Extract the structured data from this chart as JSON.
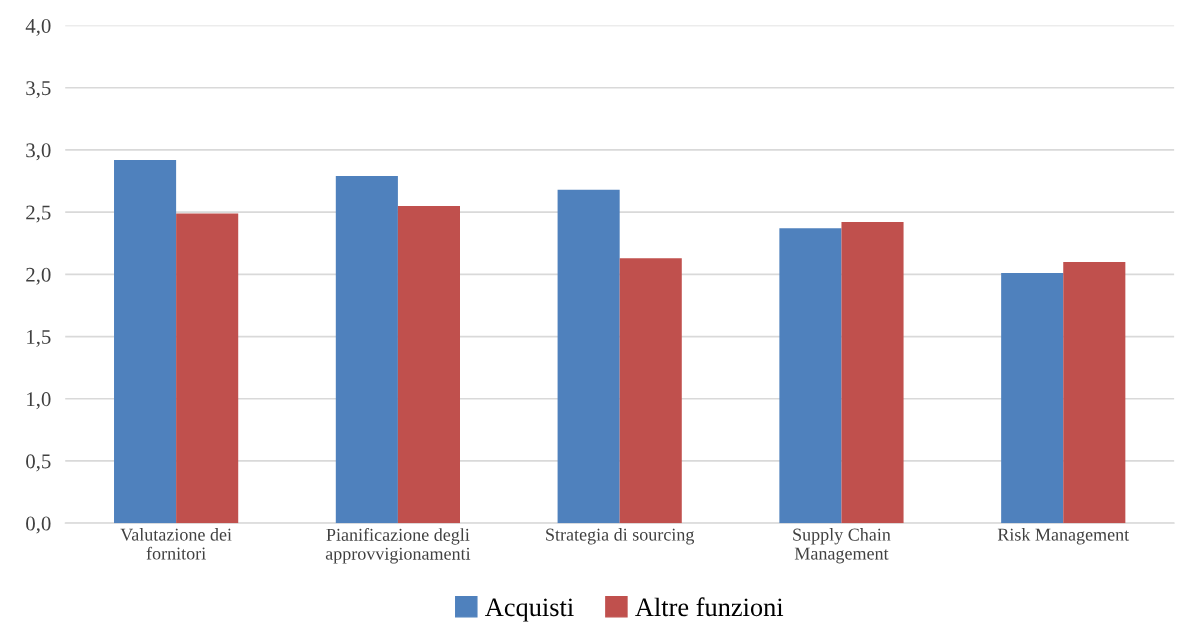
{
  "chart_data": {
    "type": "bar",
    "categories": [
      "Valutazione dei\nfornitori",
      "Pianificazione degli\napprovvigionamenti",
      "Strategia di sourcing",
      "Supply Chain\nManagement",
      "Risk Management"
    ],
    "series": [
      {
        "name": "Acquisti",
        "color": "#4f81bd",
        "values": [
          2.92,
          2.79,
          2.68,
          2.37,
          2.01
        ]
      },
      {
        "name": "Altre funzioni",
        "color": "#c0504d",
        "values": [
          2.49,
          2.55,
          2.13,
          2.42,
          2.1
        ]
      }
    ],
    "ylim": [
      0,
      4
    ],
    "yticks": [
      {
        "value": 0,
        "label": "0,0"
      },
      {
        "value": 0.5,
        "label": "0,5"
      },
      {
        "value": 1,
        "label": "1,0"
      },
      {
        "value": 1.5,
        "label": "1,5"
      },
      {
        "value": 2,
        "label": "2,0"
      },
      {
        "value": 2.5,
        "label": "2,5"
      },
      {
        "value": 3,
        "label": "3,0"
      },
      {
        "value": 3.5,
        "label": "3,5"
      },
      {
        "value": 4,
        "label": "4,0"
      }
    ],
    "grid": "y",
    "legend": "bottom"
  }
}
